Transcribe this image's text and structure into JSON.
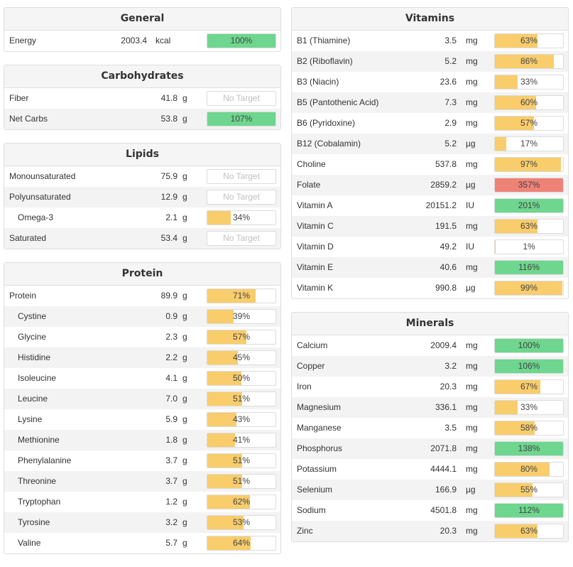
{
  "colors": {
    "yellow": "#f9cd6c",
    "green": "#6ed68e",
    "red": "#ee8277"
  },
  "general": {
    "title": "General",
    "rows": [
      {
        "name": "Energy",
        "amount": "2003.4",
        "unit": "kcal",
        "pct": 100,
        "label": "100%",
        "color": "green"
      }
    ]
  },
  "carbohydrates": {
    "title": "Carbohydrates",
    "rows": [
      {
        "name": "Fiber",
        "amount": "41.8",
        "unit": "g",
        "pct": null,
        "label": "No Target",
        "color": "none"
      },
      {
        "name": "Net Carbs",
        "amount": "53.8",
        "unit": "g",
        "pct": 107,
        "label": "107%",
        "color": "green"
      }
    ]
  },
  "lipids": {
    "title": "Lipids",
    "rows": [
      {
        "name": "Monounsaturated",
        "amount": "75.9",
        "unit": "g",
        "pct": null,
        "label": "No Target",
        "color": "none"
      },
      {
        "name": "Polyunsaturated",
        "amount": "12.9",
        "unit": "g",
        "pct": null,
        "label": "No Target",
        "color": "none"
      },
      {
        "name": "Omega-3",
        "amount": "2.1",
        "unit": "g",
        "pct": 34,
        "label": "34%",
        "color": "yellow",
        "indent": true
      },
      {
        "name": "Saturated",
        "amount": "53.4",
        "unit": "g",
        "pct": null,
        "label": "No Target",
        "color": "none"
      }
    ]
  },
  "protein": {
    "title": "Protein",
    "rows": [
      {
        "name": "Protein",
        "amount": "89.9",
        "unit": "g",
        "pct": 71,
        "label": "71%",
        "color": "yellow"
      },
      {
        "name": "Cystine",
        "amount": "0.9",
        "unit": "g",
        "pct": 39,
        "label": "39%",
        "color": "yellow",
        "indent": true
      },
      {
        "name": "Glycine",
        "amount": "2.3",
        "unit": "g",
        "pct": 57,
        "label": "57%",
        "color": "yellow",
        "indent": true
      },
      {
        "name": "Histidine",
        "amount": "2.2",
        "unit": "g",
        "pct": 45,
        "label": "45%",
        "color": "yellow",
        "indent": true
      },
      {
        "name": "Isoleucine",
        "amount": "4.1",
        "unit": "g",
        "pct": 50,
        "label": "50%",
        "color": "yellow",
        "indent": true
      },
      {
        "name": "Leucine",
        "amount": "7.0",
        "unit": "g",
        "pct": 51,
        "label": "51%",
        "color": "yellow",
        "indent": true
      },
      {
        "name": "Lysine",
        "amount": "5.9",
        "unit": "g",
        "pct": 43,
        "label": "43%",
        "color": "yellow",
        "indent": true
      },
      {
        "name": "Methionine",
        "amount": "1.8",
        "unit": "g",
        "pct": 41,
        "label": "41%",
        "color": "yellow",
        "indent": true
      },
      {
        "name": "Phenylalanine",
        "amount": "3.7",
        "unit": "g",
        "pct": 51,
        "label": "51%",
        "color": "yellow",
        "indent": true
      },
      {
        "name": "Threonine",
        "amount": "3.7",
        "unit": "g",
        "pct": 51,
        "label": "51%",
        "color": "yellow",
        "indent": true
      },
      {
        "name": "Tryptophan",
        "amount": "1.2",
        "unit": "g",
        "pct": 62,
        "label": "62%",
        "color": "yellow",
        "indent": true
      },
      {
        "name": "Tyrosine",
        "amount": "3.2",
        "unit": "g",
        "pct": 53,
        "label": "53%",
        "color": "yellow",
        "indent": true
      },
      {
        "name": "Valine",
        "amount": "5.7",
        "unit": "g",
        "pct": 64,
        "label": "64%",
        "color": "yellow",
        "indent": true
      }
    ]
  },
  "vitamins": {
    "title": "Vitamins",
    "rows": [
      {
        "name": "B1 (Thiamine)",
        "amount": "3.5",
        "unit": "mg",
        "pct": 63,
        "label": "63%",
        "color": "yellow"
      },
      {
        "name": "B2 (Riboflavin)",
        "amount": "5.2",
        "unit": "mg",
        "pct": 86,
        "label": "86%",
        "color": "yellow"
      },
      {
        "name": "B3 (Niacin)",
        "amount": "23.6",
        "unit": "mg",
        "pct": 33,
        "label": "33%",
        "color": "yellow"
      },
      {
        "name": "B5 (Pantothenic Acid)",
        "amount": "7.3",
        "unit": "mg",
        "pct": 60,
        "label": "60%",
        "color": "yellow"
      },
      {
        "name": "B6 (Pyridoxine)",
        "amount": "2.9",
        "unit": "mg",
        "pct": 57,
        "label": "57%",
        "color": "yellow"
      },
      {
        "name": "B12 (Cobalamin)",
        "amount": "5.2",
        "unit": "µg",
        "pct": 17,
        "label": "17%",
        "color": "yellow"
      },
      {
        "name": "Choline",
        "amount": "537.8",
        "unit": "mg",
        "pct": 97,
        "label": "97%",
        "color": "yellow"
      },
      {
        "name": "Folate",
        "amount": "2859.2",
        "unit": "µg",
        "pct": 357,
        "label": "357%",
        "color": "red"
      },
      {
        "name": "Vitamin A",
        "amount": "20151.2",
        "unit": "IU",
        "pct": 201,
        "label": "201%",
        "color": "green"
      },
      {
        "name": "Vitamin C",
        "amount": "191.5",
        "unit": "mg",
        "pct": 63,
        "label": "63%",
        "color": "yellow"
      },
      {
        "name": "Vitamin D",
        "amount": "49.2",
        "unit": "IU",
        "pct": 1,
        "label": "1%",
        "color": "yellow"
      },
      {
        "name": "Vitamin E",
        "amount": "40.6",
        "unit": "mg",
        "pct": 116,
        "label": "116%",
        "color": "green"
      },
      {
        "name": "Vitamin K",
        "amount": "990.8",
        "unit": "µg",
        "pct": 99,
        "label": "99%",
        "color": "yellow"
      }
    ]
  },
  "minerals": {
    "title": "Minerals",
    "rows": [
      {
        "name": "Calcium",
        "amount": "2009.4",
        "unit": "mg",
        "pct": 100,
        "label": "100%",
        "color": "green"
      },
      {
        "name": "Copper",
        "amount": "3.2",
        "unit": "mg",
        "pct": 106,
        "label": "106%",
        "color": "green"
      },
      {
        "name": "Iron",
        "amount": "20.3",
        "unit": "mg",
        "pct": 67,
        "label": "67%",
        "color": "yellow"
      },
      {
        "name": "Magnesium",
        "amount": "336.1",
        "unit": "mg",
        "pct": 33,
        "label": "33%",
        "color": "yellow"
      },
      {
        "name": "Manganese",
        "amount": "3.5",
        "unit": "mg",
        "pct": 58,
        "label": "58%",
        "color": "yellow"
      },
      {
        "name": "Phosphorus",
        "amount": "2071.8",
        "unit": "mg",
        "pct": 138,
        "label": "138%",
        "color": "green"
      },
      {
        "name": "Potassium",
        "amount": "4444.1",
        "unit": "mg",
        "pct": 80,
        "label": "80%",
        "color": "yellow"
      },
      {
        "name": "Selenium",
        "amount": "166.9",
        "unit": "µg",
        "pct": 55,
        "label": "55%",
        "color": "yellow"
      },
      {
        "name": "Sodium",
        "amount": "4501.8",
        "unit": "mg",
        "pct": 112,
        "label": "112%",
        "color": "green"
      },
      {
        "name": "Zinc",
        "amount": "20.3",
        "unit": "mg",
        "pct": 63,
        "label": "63%",
        "color": "yellow"
      }
    ]
  }
}
